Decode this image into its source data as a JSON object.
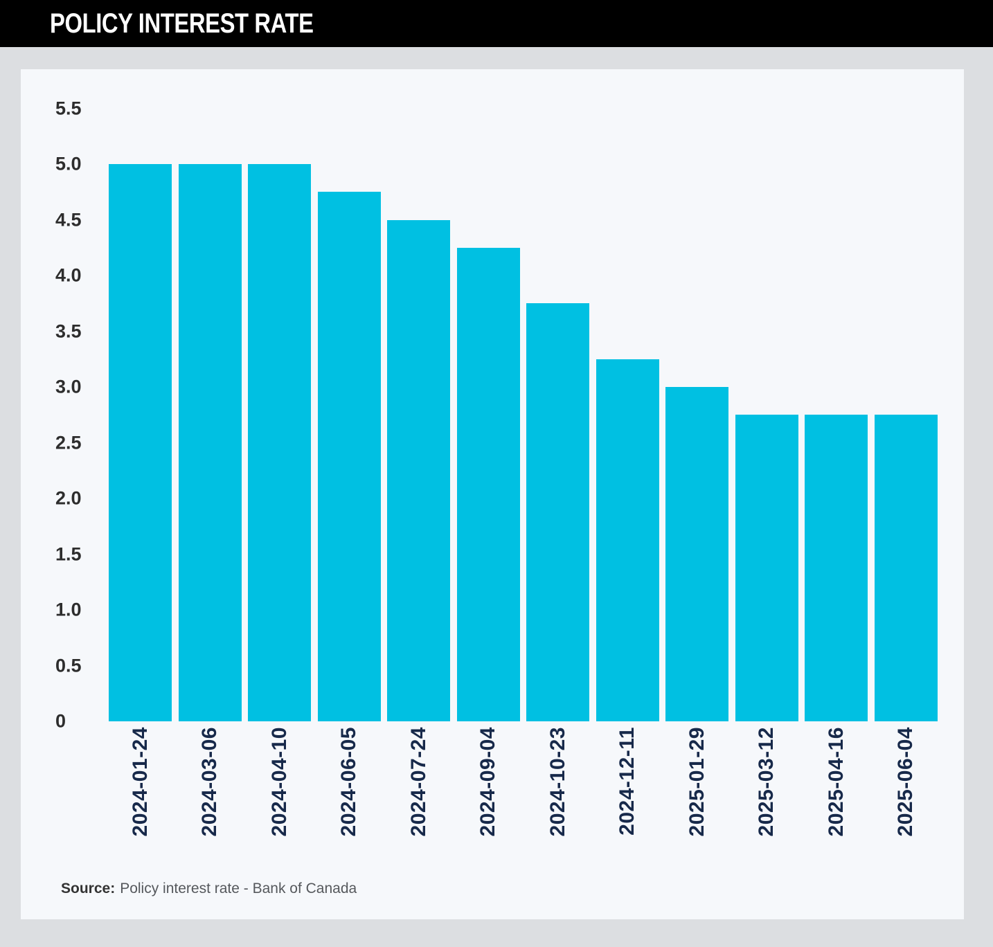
{
  "header": {
    "title": "POLICY INTEREST RATE"
  },
  "source": {
    "label": "Source:",
    "text": "Policy interest rate - Bank of Canada"
  },
  "colors": {
    "header_bg": "#000000",
    "header_text": "#ffffff",
    "page_bg": "#dcdee1",
    "card_bg": "#f6f8fb",
    "bar": "#00c0e2",
    "y_label_text": "#2d2d2d",
    "x_label_text": "#17294a"
  },
  "chart_data": {
    "type": "bar",
    "title": "POLICY INTEREST RATE",
    "categories": [
      "2024-01-24",
      "2024-03-06",
      "2024-04-10",
      "2024-06-05",
      "2024-07-24",
      "2024-09-04",
      "2024-10-23",
      "2024-12-11",
      "2025-01-29",
      "2025-03-12",
      "2025-04-16",
      "2025-06-04"
    ],
    "values": [
      5.0,
      5.0,
      5.0,
      4.75,
      4.5,
      4.25,
      3.75,
      3.25,
      3.0,
      2.75,
      2.75,
      2.75
    ],
    "xlabel": "",
    "ylabel": "",
    "ylim": [
      0,
      5.5
    ],
    "ytick_step": 0.5,
    "yticks": [
      "5.5",
      "5.0",
      "4.5",
      "4.0",
      "3.5",
      "3.0",
      "2.5",
      "2.0",
      "1.5",
      "1.0",
      "0.5",
      "0"
    ],
    "grid": false,
    "legend": "none",
    "bar_color": "#00c0e2",
    "x_label_rotation_deg": 90,
    "source": "Source: Policy interest rate - Bank of Canada"
  }
}
